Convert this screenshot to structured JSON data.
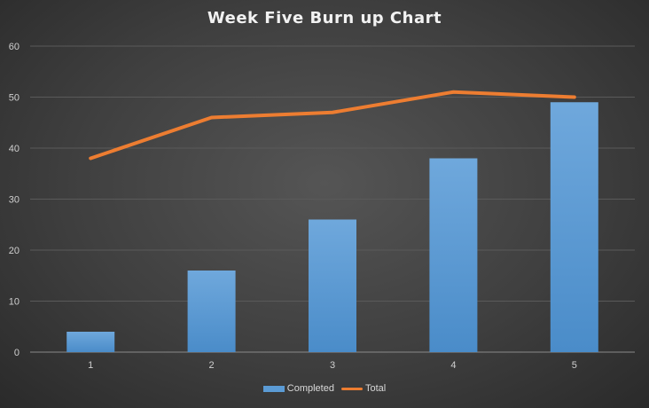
{
  "chart_data": {
    "type": "bar",
    "title": "Week Five Burn up Chart",
    "categories": [
      "1",
      "2",
      "3",
      "4",
      "5"
    ],
    "series": [
      {
        "name": "Completed",
        "type": "bar",
        "color": "#5b9bd5",
        "values": [
          4,
          16,
          26,
          38,
          49
        ]
      },
      {
        "name": "Total",
        "type": "line",
        "color": "#ed7d31",
        "values": [
          38,
          46,
          47,
          51,
          50
        ]
      }
    ],
    "ylim": [
      0,
      60
    ],
    "yticks": [
      "0",
      "10",
      "20",
      "30",
      "40",
      "50",
      "60"
    ],
    "grid": true,
    "legend": "bottom",
    "xlabel": "",
    "ylabel": ""
  }
}
